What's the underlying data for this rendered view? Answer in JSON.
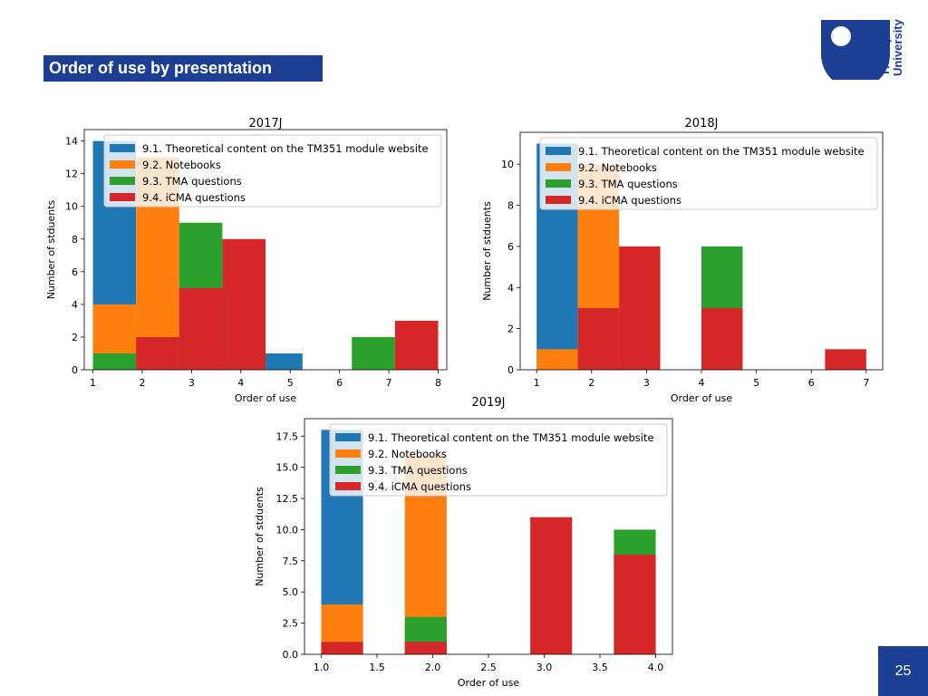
{
  "slide": {
    "title": "Order of use by presentation",
    "page_number": "25",
    "logo": {
      "lines": [
        "The Open",
        "University"
      ],
      "color": "#1c3f94"
    }
  },
  "legend": [
    {
      "label": "9.1. Theoretical content on the TM351 module website",
      "color": "#1f77b4"
    },
    {
      "label": "9.2. Notebooks",
      "color": "#ff7f0e"
    },
    {
      "label": "9.3. TMA questions",
      "color": "#2ca02c"
    },
    {
      "label": "9.4. iCMA questions",
      "color": "#d62728"
    }
  ],
  "chart_data": [
    {
      "type": "bar",
      "title": "2017J",
      "xlabel": "Order of use",
      "ylabel": "Number of stduents",
      "xlim": [
        0.825,
        8.175
      ],
      "ylim": [
        0,
        14.7
      ],
      "xticks": [
        1,
        2,
        3,
        4,
        5,
        6,
        7,
        8
      ],
      "xtick_labels": [
        "1",
        "2",
        "3",
        "4",
        "5",
        "6",
        "7",
        "8"
      ],
      "yticks": [
        0,
        2,
        4,
        6,
        8,
        10,
        12,
        14
      ],
      "ytick_labels": [
        "0",
        "2",
        "4",
        "6",
        "8",
        "10",
        "12",
        "14"
      ],
      "legend_position": "top-right",
      "series": [
        {
          "name": "9.1. Theoretical content on the TM351 module website",
          "color": "#1f77b4",
          "bars": [
            {
              "x0": 1.0,
              "x1": 1.875,
              "value": 14
            },
            {
              "x0": 4.5,
              "x1": 5.25,
              "value": 1
            }
          ]
        },
        {
          "name": "9.2. Notebooks",
          "color": "#ff7f0e",
          "bars": [
            {
              "x0": 1.0,
              "x1": 1.875,
              "value": 4
            },
            {
              "x0": 1.875,
              "x1": 2.75,
              "value": 13
            }
          ]
        },
        {
          "name": "9.3. TMA questions",
          "color": "#2ca02c",
          "bars": [
            {
              "x0": 1.0,
              "x1": 1.875,
              "value": 1
            },
            {
              "x0": 2.75,
              "x1": 3.625,
              "value": 9
            },
            {
              "x0": 6.25,
              "x1": 7.125,
              "value": 2
            }
          ]
        },
        {
          "name": "9.4. iCMA questions",
          "color": "#d62728",
          "bars": [
            {
              "x0": 1.875,
              "x1": 2.75,
              "value": 2
            },
            {
              "x0": 2.75,
              "x1": 3.625,
              "value": 5
            },
            {
              "x0": 3.625,
              "x1": 4.5,
              "value": 8
            },
            {
              "x0": 7.125,
              "x1": 8.0,
              "value": 3
            }
          ]
        }
      ]
    },
    {
      "type": "bar",
      "title": "2018J",
      "xlabel": "Order of use",
      "ylabel": "Number of stduents",
      "xlim": [
        0.7,
        7.3
      ],
      "ylim": [
        0,
        11.55
      ],
      "xticks": [
        1,
        2,
        3,
        4,
        5,
        6,
        7
      ],
      "xtick_labels": [
        "1",
        "2",
        "3",
        "4",
        "5",
        "6",
        "7"
      ],
      "yticks": [
        0,
        2,
        4,
        6,
        8,
        10
      ],
      "ytick_labels": [
        "0",
        "2",
        "4",
        "6",
        "8",
        "10"
      ],
      "legend_position": "top-right",
      "series": [
        {
          "name": "9.1. Theoretical content on the TM351 module website",
          "color": "#1f77b4",
          "bars": [
            {
              "x0": 1.0,
              "x1": 1.75,
              "value": 11
            }
          ]
        },
        {
          "name": "9.2. Notebooks",
          "color": "#ff7f0e",
          "bars": [
            {
              "x0": 1.0,
              "x1": 1.75,
              "value": 1
            },
            {
              "x0": 1.75,
              "x1": 2.5,
              "value": 10
            }
          ]
        },
        {
          "name": "9.3. TMA questions",
          "color": "#2ca02c",
          "bars": [
            {
              "x0": 4.0,
              "x1": 4.75,
              "value": 6
            }
          ]
        },
        {
          "name": "9.4. iCMA questions",
          "color": "#d62728",
          "bars": [
            {
              "x0": 1.75,
              "x1": 2.5,
              "value": 3
            },
            {
              "x0": 2.5,
              "x1": 3.25,
              "value": 6
            },
            {
              "x0": 4.0,
              "x1": 4.75,
              "value": 3
            },
            {
              "x0": 6.25,
              "x1": 7.0,
              "value": 1
            }
          ]
        }
      ]
    },
    {
      "type": "bar",
      "title": "2019J",
      "xlabel": "Order of use",
      "ylabel": "Number of stduents",
      "xlim": [
        0.85,
        4.15
      ],
      "ylim": [
        0,
        18.9
      ],
      "xticks": [
        1.0,
        1.5,
        2.0,
        2.5,
        3.0,
        3.5,
        4.0
      ],
      "xtick_labels": [
        "1.0",
        "1.5",
        "2.0",
        "2.5",
        "3.0",
        "3.5",
        "4.0"
      ],
      "yticks": [
        0,
        2.5,
        5,
        7.5,
        10,
        12.5,
        15,
        17.5
      ],
      "ytick_labels": [
        "0.0",
        "2.5",
        "5.0",
        "7.5",
        "10.0",
        "12.5",
        "15.0",
        "17.5"
      ],
      "legend_position": "top-right",
      "series": [
        {
          "name": "9.1. Theoretical content on the TM351 module website",
          "color": "#1f77b4",
          "bars": [
            {
              "x0": 1.0,
              "x1": 1.375,
              "value": 18
            }
          ]
        },
        {
          "name": "9.2. Notebooks",
          "color": "#ff7f0e",
          "bars": [
            {
              "x0": 1.0,
              "x1": 1.375,
              "value": 4
            },
            {
              "x0": 1.75,
              "x1": 2.125,
              "value": 16
            }
          ]
        },
        {
          "name": "9.3. TMA questions",
          "color": "#2ca02c",
          "bars": [
            {
              "x0": 1.75,
              "x1": 2.125,
              "value": 3
            },
            {
              "x0": 3.625,
              "x1": 4.0,
              "value": 10
            }
          ]
        },
        {
          "name": "9.4. iCMA questions",
          "color": "#d62728",
          "bars": [
            {
              "x0": 1.0,
              "x1": 1.375,
              "value": 1
            },
            {
              "x0": 1.75,
              "x1": 2.125,
              "value": 1
            },
            {
              "x0": 2.875,
              "x1": 3.25,
              "value": 11
            },
            {
              "x0": 3.625,
              "x1": 4.0,
              "value": 8
            }
          ]
        }
      ]
    }
  ]
}
